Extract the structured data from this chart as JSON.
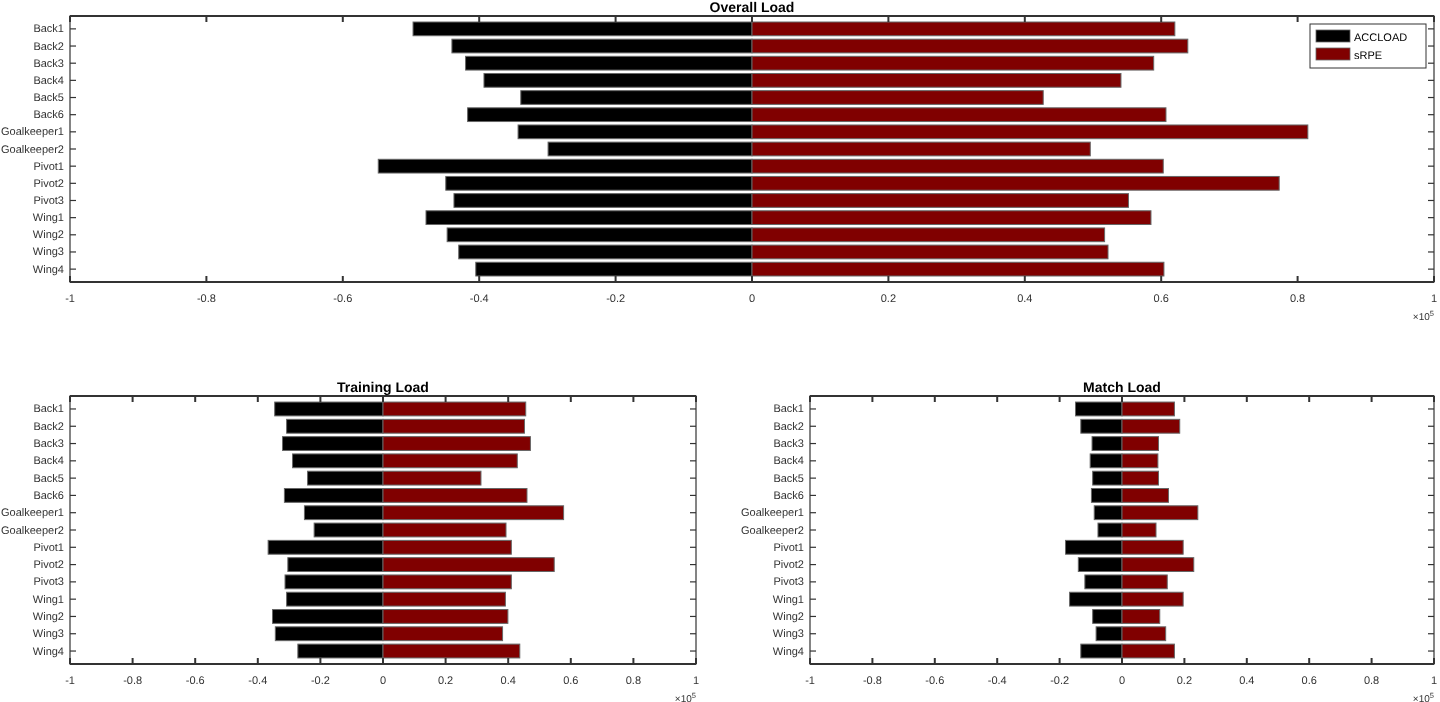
{
  "chart_data": [
    {
      "type": "bar",
      "orientation": "horizontal",
      "stacked": true,
      "title": "Overall Load",
      "categories": [
        "Back1",
        "Back2",
        "Back3",
        "Back4",
        "Back5",
        "Back6",
        "Goalkeeper1",
        "Goalkeeper2",
        "Pivot1",
        "Pivot2",
        "Pivot3",
        "Wing1",
        "Wing2",
        "Wing3",
        "Wing4"
      ],
      "series": [
        {
          "name": "ACCLOAD",
          "color": "#000000",
          "values": [
            -0.497,
            -0.44,
            -0.42,
            -0.393,
            -0.339,
            -0.417,
            -0.343,
            -0.299,
            -0.548,
            -0.449,
            -0.437,
            -0.478,
            -0.447,
            -0.43,
            -0.405
          ]
        },
        {
          "name": "sRPE",
          "color": "#800000",
          "values": [
            0.62,
            0.639,
            0.589,
            0.541,
            0.427,
            0.607,
            0.815,
            0.496,
            0.603,
            0.773,
            0.552,
            0.585,
            0.517,
            0.522,
            0.604
          ]
        }
      ],
      "xlim": [
        -1,
        1
      ],
      "xticks": [
        -1,
        -0.8,
        -0.6,
        -0.4,
        -0.2,
        0,
        0.2,
        0.4,
        0.6,
        0.8,
        1
      ],
      "legend": "top right",
      "annotations": [
        "×10$^{5}$"
      ]
    },
    {
      "type": "bar",
      "orientation": "horizontal",
      "stacked": true,
      "title": "Training Load",
      "categories": [
        "Back1",
        "Back2",
        "Back3",
        "Back4",
        "Back5",
        "Back6",
        "Goalkeeper1",
        "Goalkeeper2",
        "Pivot1",
        "Pivot2",
        "Pivot3",
        "Wing1",
        "Wing2",
        "Wing3",
        "Wing4"
      ],
      "series": [
        {
          "color": "#000000",
          "values": [
            -0.346,
            -0.308,
            -0.321,
            -0.289,
            -0.241,
            -0.315,
            -0.251,
            -0.22,
            -0.367,
            -0.304,
            -0.313,
            -0.308,
            -0.353,
            -0.344,
            -0.272
          ]
        },
        {
          "color": "#800000",
          "values": [
            0.456,
            0.452,
            0.471,
            0.429,
            0.313,
            0.46,
            0.577,
            0.393,
            0.41,
            0.547,
            0.41,
            0.391,
            0.399,
            0.382,
            0.437
          ]
        }
      ],
      "xlim": [
        -1,
        1
      ],
      "xticks": [
        -1,
        -0.8,
        -0.6,
        -0.4,
        -0.2,
        0,
        0.2,
        0.4,
        0.6,
        0.8,
        1
      ],
      "annotations": [
        "×10$^{5}$"
      ]
    },
    {
      "type": "bar",
      "orientation": "horizontal",
      "stacked": true,
      "title": "Match Load",
      "categories": [
        "Back1",
        "Back2",
        "Back3",
        "Back4",
        "Back5",
        "Back6",
        "Goalkeeper1",
        "Goalkeeper2",
        "Pivot1",
        "Pivot2",
        "Pivot3",
        "Wing1",
        "Wing2",
        "Wing3",
        "Wing4"
      ],
      "series": [
        {
          "color": "#000000",
          "values": [
            -0.149,
            -0.132,
            -0.096,
            -0.102,
            -0.094,
            -0.098,
            -0.089,
            -0.077,
            -0.181,
            -0.14,
            -0.119,
            -0.168,
            -0.094,
            -0.083,
            -0.132
          ]
        },
        {
          "color": "#800000",
          "values": [
            0.168,
            0.185,
            0.117,
            0.115,
            0.117,
            0.149,
            0.243,
            0.109,
            0.196,
            0.23,
            0.145,
            0.196,
            0.121,
            0.14,
            0.168
          ]
        }
      ],
      "xlim": [
        -1,
        1
      ],
      "xticks": [
        -1,
        -0.8,
        -0.6,
        -0.4,
        -0.2,
        0,
        0.2,
        0.4,
        0.6,
        0.8,
        1
      ],
      "annotations": [
        "×10$^{5}$"
      ]
    }
  ]
}
